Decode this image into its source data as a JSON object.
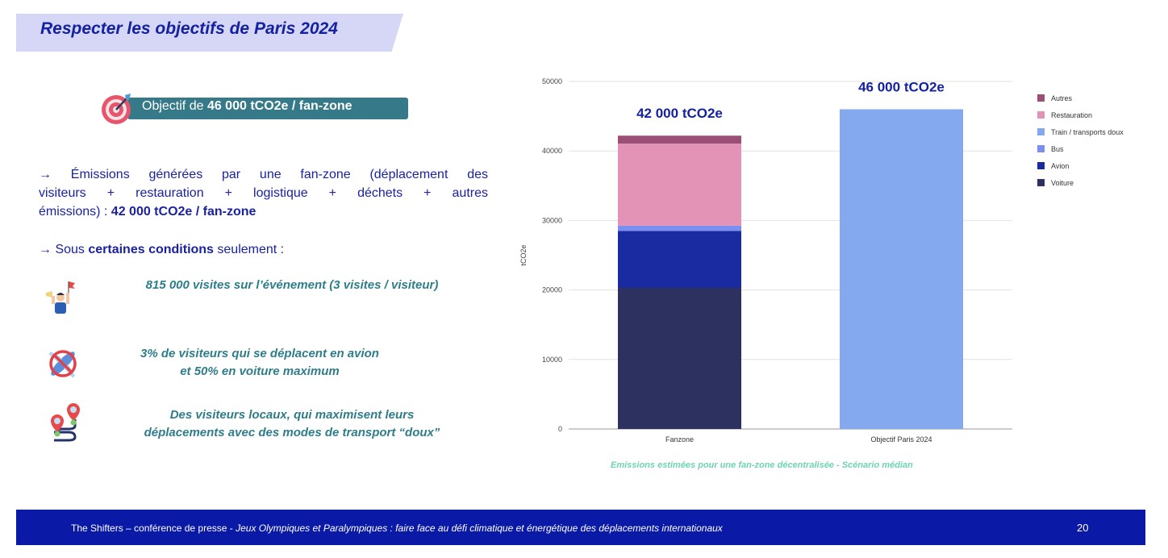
{
  "title": "Respecter les objectifs de Paris 2024",
  "goal": {
    "prefix": "Objectif de ",
    "value": "46 000 tCO2e / fan-zone",
    "icon": "target-dart-icon"
  },
  "paragraphs": {
    "emissions_line1": "→ Émissions générées par une fan-zone (déplacement des",
    "emissions_line2": "visiteurs + restauration + logistique + déchets + autres",
    "emissions_line3_prefix": "émissions) :  ",
    "emissions_value": "42 000 tCO2e / fan-zone",
    "conditions_prefix": "→ Sous ",
    "conditions_bold": "certaines conditions",
    "conditions_suffix": " seulement :"
  },
  "conditions": [
    {
      "icon": "fan-supporter-icon",
      "lines": [
        "815 000 visites sur l’événement (3 visites / visiteur)"
      ]
    },
    {
      "icon": "no-plane-icon",
      "lines": [
        "3% de visiteurs qui se déplacent en avion",
        "et 50% en voiture maximum"
      ]
    },
    {
      "icon": "route-pins-icon",
      "lines": [
        "Des visiteurs locaux, qui maximisent leurs",
        "déplacements avec des modes de transport “doux”"
      ]
    }
  ],
  "chart_data": {
    "type": "bar",
    "stacked": true,
    "title": "",
    "caption": "Emissions estimées pour une fan-zone décentralisée - Scénario médian",
    "xlabel": "",
    "ylabel": "tCO2e",
    "ylim": [
      0,
      50000
    ],
    "yticks": [
      0,
      10000,
      20000,
      30000,
      40000,
      50000
    ],
    "grid": true,
    "legend_position": "right",
    "categories": [
      "Fanzone",
      "Objectif Paris 2024"
    ],
    "bar_annotations": [
      "42 000 tCO2e",
      "46 000 tCO2e"
    ],
    "series": [
      {
        "name": "Voiture",
        "color": "#2c3160",
        "values": [
          20300,
          0
        ]
      },
      {
        "name": "Avion",
        "color": "#1a2aa0",
        "values": [
          8200,
          0
        ]
      },
      {
        "name": "Bus",
        "color": "#7b8ff0",
        "values": [
          750,
          0
        ]
      },
      {
        "name": "Train / transports doux",
        "color": "#84a9ee",
        "values": [
          0,
          46000
        ]
      },
      {
        "name": "Restauration",
        "color": "#e293b6",
        "values": [
          11800,
          0
        ]
      },
      {
        "name": "Autres",
        "color": "#9b4f77",
        "values": [
          1150,
          0
        ]
      }
    ]
  },
  "footer": {
    "text_plain": "The Shifters – conférence de presse - ",
    "text_italic": "Jeux Olympiques et Paralympiques : faire face au défi climatique et énergétique des déplacements internationaux",
    "page": "20"
  },
  "colors": {
    "title_bg": "#d6d6f7",
    "title_text": "#1421a0",
    "badge_bg": "#367a8a",
    "body_text": "#1a22a0",
    "condition_text": "#2e7d8a",
    "caption_text": "#6fd3b2",
    "footer_bg": "#0a1aa6"
  }
}
